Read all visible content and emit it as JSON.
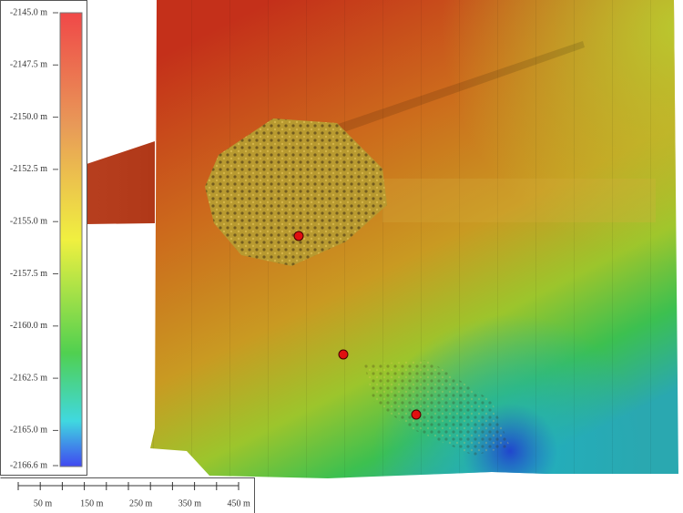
{
  "colorbar": {
    "labels": [
      "-2145.0 m",
      "-2147.5 m",
      "-2150.0 m",
      "-2152.5 m",
      "-2155.0 m",
      "-2157.5 m",
      "-2160.0 m",
      "-2162.5 m",
      "-2165.0 m",
      "-2166.6 m"
    ]
  },
  "scale_bar": {
    "labels": [
      "50 m",
      "150 m",
      "250 m",
      "350 m",
      "450 m"
    ]
  }
}
